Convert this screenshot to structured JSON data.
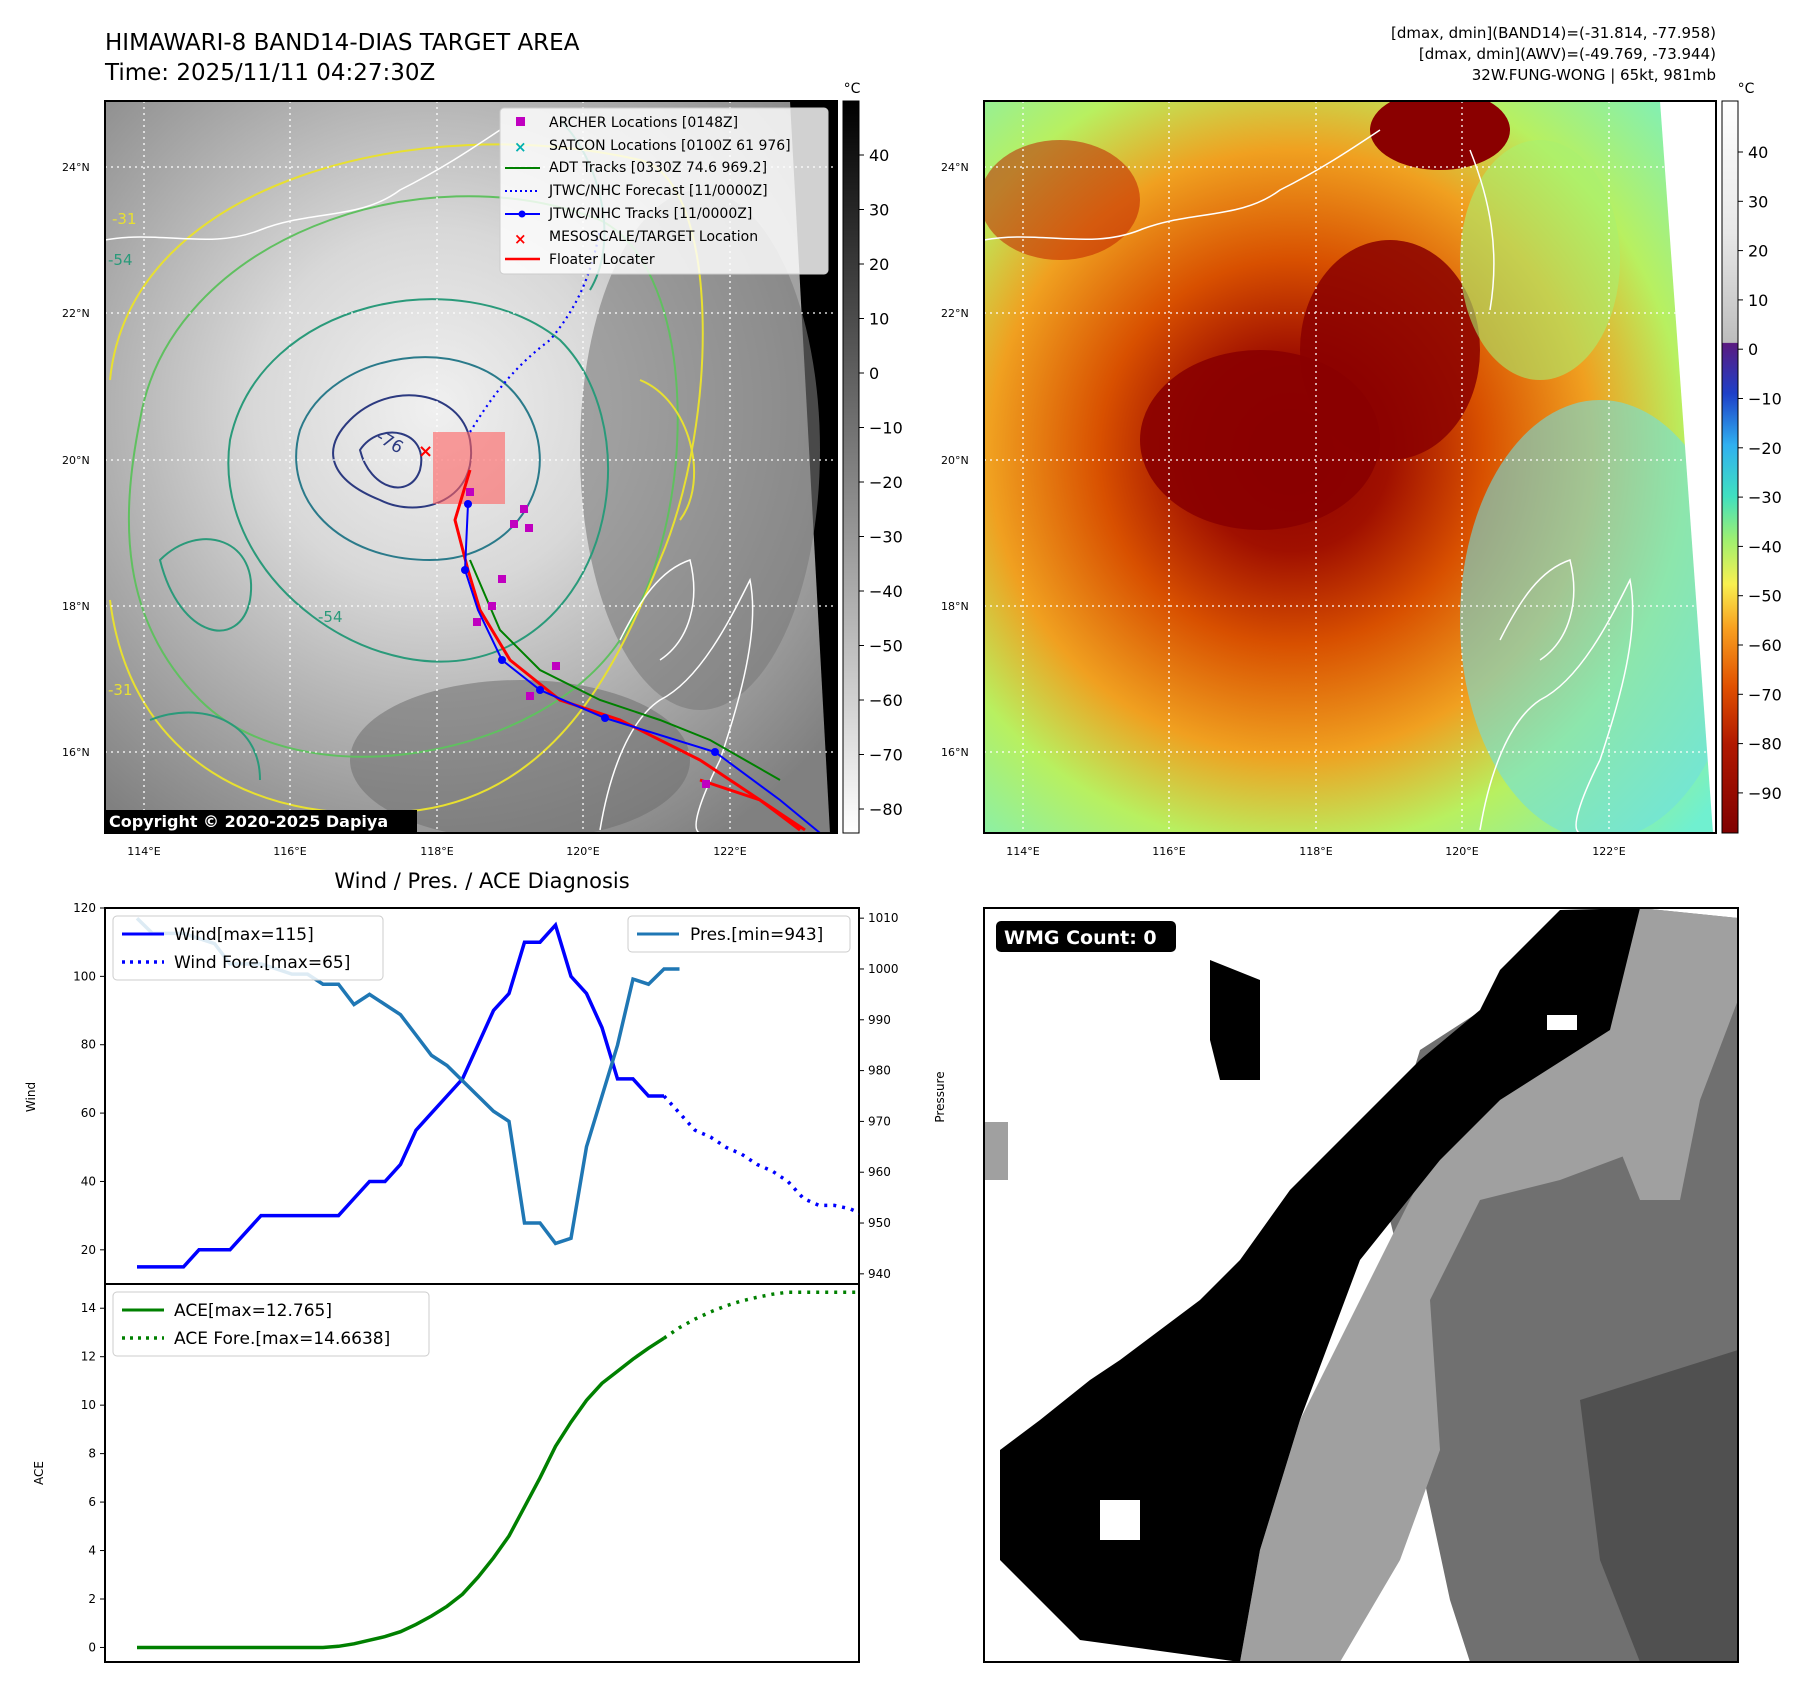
{
  "header": {
    "title_line1": "HIMAWARI-8 BAND14-DIAS TARGET AREA",
    "title_line2": "Time: 2025/11/11 04:27:30Z",
    "stats_line1": "[dmax, dmin](BAND14)=(-31.814, -77.958)",
    "stats_line2": "[dmax, dmin](AWV)=(-49.769, -73.944)",
    "stats_line3": "32W.FUNG-WONG | 65kt, 981mb"
  },
  "map": {
    "lat_labels": [
      "24°N",
      "22°N",
      "20°N",
      "18°N",
      "16°N"
    ],
    "lon_labels": [
      "114°E",
      "116°E",
      "118°E",
      "120°E",
      "122°E"
    ],
    "contour_labels": [
      "-76",
      "-54",
      "-31",
      "-31",
      "-54"
    ],
    "copyright": "Copyright © 2020-2025 Dapiya",
    "legend": [
      {
        "label": "ARCHER Locations [0148Z]",
        "color": "#c000c0",
        "kind": "square"
      },
      {
        "label": "SATCON Locations [0100Z 61 976]",
        "color": "#00b0b0",
        "kind": "x"
      },
      {
        "label": "ADT Tracks [0330Z 74.6 969.2]",
        "color": "#008000",
        "kind": "line"
      },
      {
        "label": "JTWC/NHC Forecast [11/0000Z]",
        "color": "#0000ff",
        "kind": "dotted"
      },
      {
        "label": "JTWC/NHC Tracks [11/0000Z]",
        "color": "#0000ff",
        "kind": "line-dot"
      },
      {
        "label": "MESOSCALE/TARGET Location",
        "color": "#ff0000",
        "kind": "x"
      },
      {
        "label": "Floater Locater",
        "color": "#ff0000",
        "kind": "line"
      }
    ]
  },
  "colorbar_left": {
    "unit": "°C",
    "ticks": [
      "40",
      "30",
      "20",
      "10",
      "0",
      "−10",
      "−20",
      "−30",
      "−40",
      "−50",
      "−60",
      "−70",
      "−80"
    ]
  },
  "colorbar_right": {
    "unit": "°C",
    "ticks": [
      "40",
      "30",
      "20",
      "10",
      "0",
      "−10",
      "−20",
      "−30",
      "−40",
      "−50",
      "−60",
      "−70",
      "−80",
      "−90"
    ]
  },
  "diagnosis_title": "Wind / Pres. / ACE Diagnosis",
  "wmg_label": "WMG Count: 0",
  "chart_data": [
    {
      "type": "line",
      "title": "Wind / Pres. / ACE Diagnosis",
      "ylabel": "Wind",
      "y2label": "Pressure",
      "ylim": [
        10,
        120
      ],
      "y2lim": [
        938,
        1012
      ],
      "yticks": [
        "20",
        "40",
        "60",
        "80",
        "100",
        "120"
      ],
      "y2ticks": [
        "940",
        "950",
        "960",
        "970",
        "980",
        "990",
        "1000",
        "1010"
      ],
      "series": [
        {
          "name": "Wind[max=115]",
          "color": "#0000ff",
          "style": "solid",
          "axis": "left",
          "values": [
            15,
            15,
            15,
            15,
            20,
            20,
            20,
            25,
            30,
            30,
            30,
            30,
            30,
            30,
            35,
            40,
            40,
            45,
            55,
            60,
            65,
            70,
            80,
            90,
            95,
            110,
            110,
            115,
            100,
            95,
            85,
            70,
            70,
            65,
            65
          ]
        },
        {
          "name": "Wind Fore.[max=65]",
          "color": "#0000ff",
          "style": "dotted",
          "axis": "left",
          "start_index": 34,
          "values": [
            65,
            60,
            55,
            53,
            50,
            48,
            45,
            43,
            40,
            35,
            33,
            33,
            32,
            30
          ]
        },
        {
          "name": "Pres.[min=943]",
          "color": "#1f77b4",
          "style": "solid",
          "axis": "right",
          "values": [
            1010,
            1007,
            1007,
            1007,
            1006,
            1005,
            1001,
            1001,
            1001,
            1000,
            999,
            999,
            997,
            997,
            993,
            995,
            993,
            991,
            987,
            983,
            981,
            978,
            975,
            972,
            970,
            950,
            950,
            946,
            947,
            965,
            975,
            985,
            998,
            997,
            1000,
            1000
          ]
        }
      ]
    },
    {
      "type": "line",
      "ylabel": "ACE",
      "ylim": [
        -0.6,
        15
      ],
      "yticks": [
        "0",
        "2",
        "4",
        "6",
        "8",
        "10",
        "12",
        "14"
      ],
      "series": [
        {
          "name": "ACE[max=12.765]",
          "color": "#008000",
          "style": "solid",
          "values": [
            0,
            0,
            0,
            0,
            0,
            0,
            0,
            0,
            0,
            0,
            0,
            0,
            0,
            0.05,
            0.15,
            0.3,
            0.45,
            0.65,
            0.95,
            1.3,
            1.7,
            2.2,
            2.9,
            3.7,
            4.6,
            5.8,
            7.0,
            8.3,
            9.3,
            10.2,
            10.9,
            11.4,
            11.9,
            12.35,
            12.765
          ]
        },
        {
          "name": "ACE Fore.[max=14.6638]",
          "color": "#008000",
          "style": "dotted",
          "start_index": 34,
          "values": [
            12.765,
            13.2,
            13.55,
            13.85,
            14.1,
            14.3,
            14.45,
            14.58,
            14.66,
            14.66,
            14.66,
            14.66,
            14.66,
            14.66
          ]
        }
      ]
    }
  ]
}
